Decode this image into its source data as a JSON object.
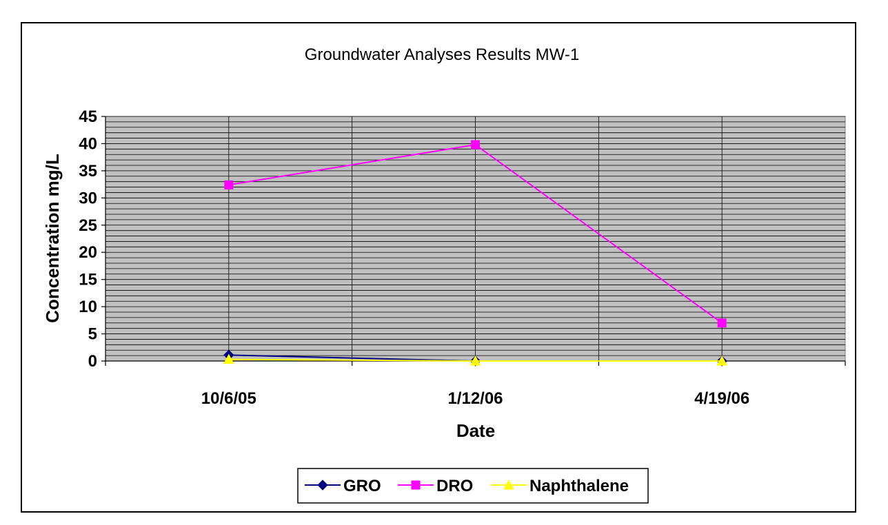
{
  "chart_data": {
    "type": "line",
    "title": "Groundwater Analyses Results MW-1",
    "xlabel": "Date",
    "ylabel": "Concentration mg/L",
    "categories": [
      "10/6/05",
      "1/12/06",
      "4/19/06"
    ],
    "ylim": [
      0,
      45
    ],
    "ymajor_ticks": [
      0,
      5,
      10,
      15,
      20,
      25,
      30,
      35,
      40,
      45
    ],
    "yminor_step": 1,
    "grid": "on",
    "plot_background": "#c0c0c0",
    "legend_position": "bottom",
    "series": [
      {
        "name": "GRO",
        "values": [
          1.1,
          0,
          0
        ],
        "color": "#000080",
        "marker": "diamond"
      },
      {
        "name": "DRO",
        "values": [
          32.4,
          39.8,
          7.0
        ],
        "color": "#ff00ff",
        "marker": "square"
      },
      {
        "name": "Naphthalene",
        "values": [
          0.3,
          0,
          0
        ],
        "color": "#ffff00",
        "marker": "triangle"
      }
    ]
  }
}
